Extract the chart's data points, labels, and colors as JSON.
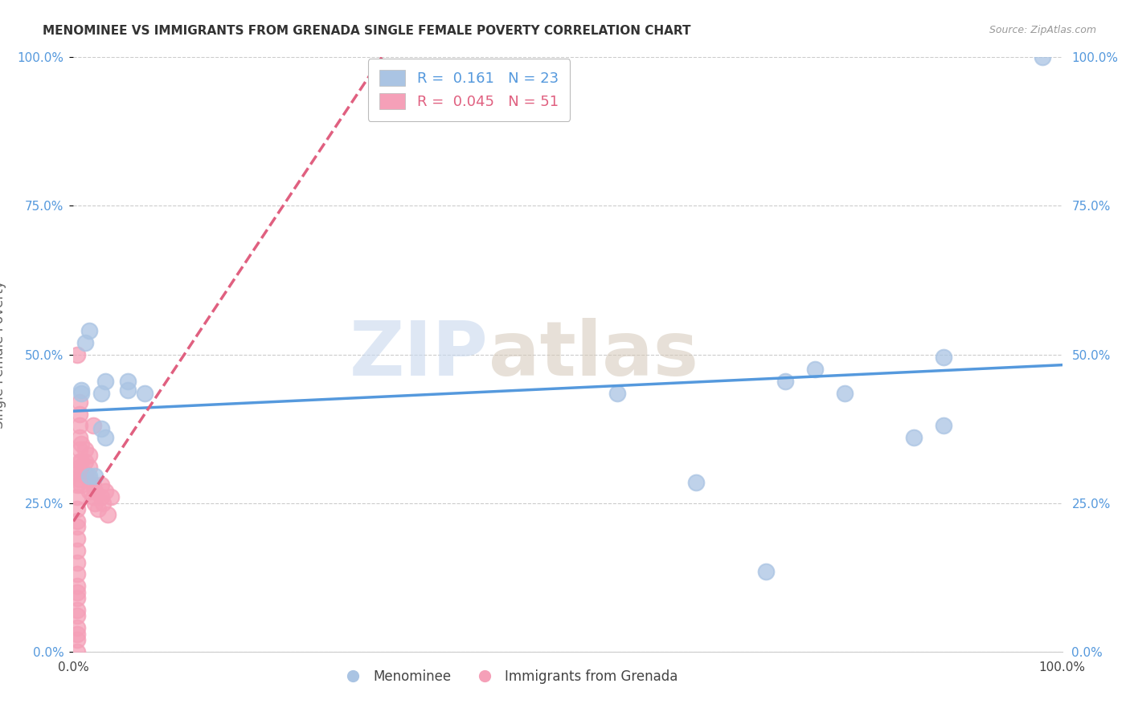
{
  "title": "MENOMINEE VS IMMIGRANTS FROM GRENADA SINGLE FEMALE POVERTY CORRELATION CHART",
  "source": "Source: ZipAtlas.com",
  "ylabel": "Single Female Poverty",
  "ytick_labels": [
    "0.0%",
    "25.0%",
    "50.0%",
    "75.0%",
    "100.0%"
  ],
  "ytick_values": [
    0.0,
    0.25,
    0.5,
    0.75,
    1.0
  ],
  "xtick_labels": [
    "0.0%",
    "100.0%"
  ],
  "legend_labels": [
    "Menominee",
    "Immigrants from Grenada"
  ],
  "menominee_R": "0.161",
  "menominee_N": "23",
  "grenada_R": "0.045",
  "grenada_N": "51",
  "menominee_color": "#aac4e3",
  "grenada_color": "#f5a0b8",
  "trendline_menominee_color": "#5599dd",
  "trendline_grenada_color": "#e06080",
  "background_color": "#ffffff",
  "watermark_zip": "ZIP",
  "watermark_atlas": "atlas",
  "menominee_x": [
    0.008,
    0.008,
    0.012,
    0.016,
    0.016,
    0.022,
    0.028,
    0.028,
    0.032,
    0.032,
    0.055,
    0.055,
    0.072,
    0.55,
    0.63,
    0.7,
    0.72,
    0.75,
    0.78,
    0.85,
    0.88,
    0.88,
    0.98
  ],
  "menominee_y": [
    0.435,
    0.44,
    0.52,
    0.54,
    0.295,
    0.295,
    0.375,
    0.435,
    0.36,
    0.455,
    0.455,
    0.44,
    0.435,
    0.435,
    0.285,
    0.135,
    0.455,
    0.475,
    0.435,
    0.36,
    0.495,
    0.38,
    1.0
  ],
  "grenada_x": [
    0.004,
    0.004,
    0.004,
    0.004,
    0.004,
    0.004,
    0.004,
    0.004,
    0.004,
    0.004,
    0.004,
    0.004,
    0.004,
    0.004,
    0.004,
    0.004,
    0.004,
    0.004,
    0.004,
    0.004,
    0.006,
    0.006,
    0.006,
    0.006,
    0.006,
    0.006,
    0.006,
    0.006,
    0.008,
    0.008,
    0.008,
    0.008,
    0.012,
    0.012,
    0.012,
    0.016,
    0.016,
    0.016,
    0.016,
    0.02,
    0.02,
    0.02,
    0.022,
    0.022,
    0.025,
    0.028,
    0.028,
    0.03,
    0.032,
    0.035,
    0.038
  ],
  "grenada_y": [
    0.0,
    0.02,
    0.03,
    0.04,
    0.06,
    0.07,
    0.09,
    0.1,
    0.11,
    0.13,
    0.15,
    0.17,
    0.19,
    0.21,
    0.22,
    0.24,
    0.26,
    0.28,
    0.3,
    0.5,
    0.29,
    0.31,
    0.32,
    0.34,
    0.36,
    0.38,
    0.4,
    0.42,
    0.28,
    0.3,
    0.32,
    0.35,
    0.3,
    0.32,
    0.34,
    0.27,
    0.29,
    0.31,
    0.33,
    0.26,
    0.28,
    0.38,
    0.25,
    0.27,
    0.24,
    0.26,
    0.28,
    0.25,
    0.27,
    0.23,
    0.26
  ]
}
